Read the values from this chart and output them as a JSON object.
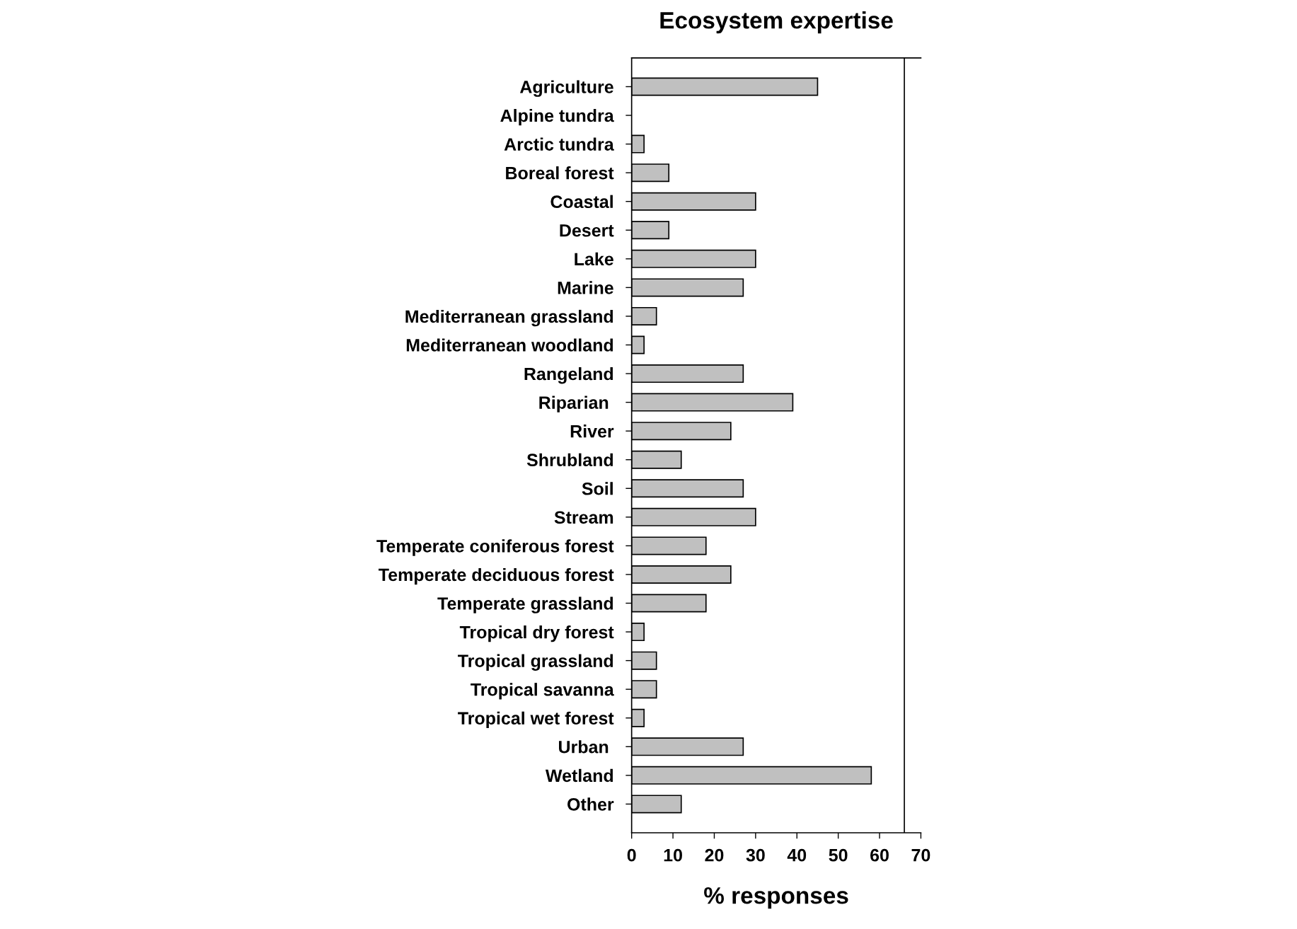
{
  "chart_data": {
    "type": "bar",
    "orientation": "horizontal",
    "title": "Ecosystem expertise",
    "xlabel": "% responses",
    "categories": [
      "Agriculture",
      "Alpine tundra",
      "Arctic tundra",
      "Boreal forest",
      "Coastal",
      "Desert",
      "Lake",
      "Marine",
      "Mediterranean grassland",
      "Mediterranean woodland",
      "Rangeland",
      "Riparian ",
      "River",
      "Shrubland",
      "Soil",
      "Stream",
      "Temperate coniferous forest",
      "Temperate deciduous forest",
      "Temperate grassland",
      "Tropical dry forest",
      "Tropical grassland",
      "Tropical savanna",
      "Tropical wet forest",
      "Urban ",
      "Wetland",
      "Other"
    ],
    "values": [
      45,
      0,
      3,
      9,
      30,
      9,
      30,
      27,
      6,
      3,
      27,
      39,
      24,
      12,
      27,
      30,
      18,
      24,
      18,
      3,
      6,
      6,
      3,
      27,
      58,
      12
    ],
    "color": "#c0c0c0",
    "xlim": [
      0,
      70
    ],
    "xticks": [
      0,
      10,
      20,
      30,
      40,
      50,
      60,
      70
    ],
    "ref_lines": [
      {
        "axis": "x",
        "value": 66,
        "color": "#000000"
      }
    ],
    "grid": false,
    "legend": false
  }
}
